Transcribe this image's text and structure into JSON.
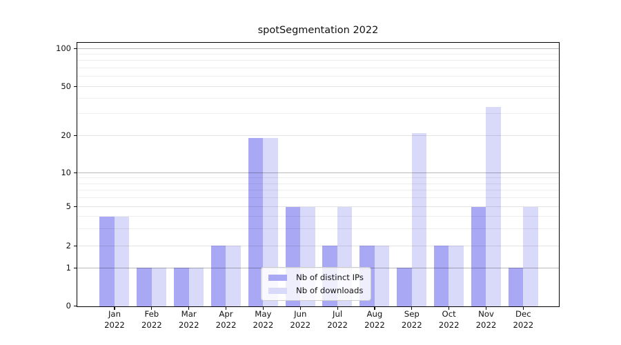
{
  "figure": {
    "title": "spotSegmentation 2022"
  },
  "chart_data": {
    "type": "bar",
    "title": "spotSegmentation 2022",
    "categories": [
      "Jan",
      "Feb",
      "Mar",
      "Apr",
      "May",
      "Jun",
      "Jul",
      "Aug",
      "Sep",
      "Oct",
      "Nov",
      "Dec"
    ],
    "x_tick_year": "2022",
    "series": [
      {
        "name": "Nb of distinct IPs",
        "color": "#a8a8f4",
        "values": [
          4,
          1,
          1,
          2,
          19,
          5,
          2,
          2,
          1,
          2,
          5,
          1
        ]
      },
      {
        "name": "Nb of downloads",
        "color": "#d9d9f9",
        "values": [
          4,
          1,
          1,
          2,
          19,
          5,
          5,
          2,
          21,
          2,
          34,
          5
        ]
      }
    ],
    "ylabel": "",
    "xlabel": "",
    "yscale": "log-like with 0 baseline",
    "y_tick_labels": [
      0,
      1,
      2,
      5,
      10,
      20,
      50,
      100
    ],
    "y_major_gridlines": [
      1,
      10,
      100
    ],
    "y_minor_gridlines": [
      3,
      4,
      6,
      7,
      8,
      9,
      30,
      40,
      60,
      70,
      80,
      90
    ],
    "ylim": [
      0,
      110
    ],
    "grid": "both, horizontal only",
    "legend_position": "lower center"
  },
  "colors": {
    "series_ips": "#a8a8f4",
    "series_downloads": "#d9d9f9",
    "grid_minor": "#ededed",
    "grid_labeled": "#e3e3e3",
    "grid_major": "#b9b9b9",
    "axis": "#000000",
    "legend_border": "#cccccc",
    "text": "#111111"
  }
}
